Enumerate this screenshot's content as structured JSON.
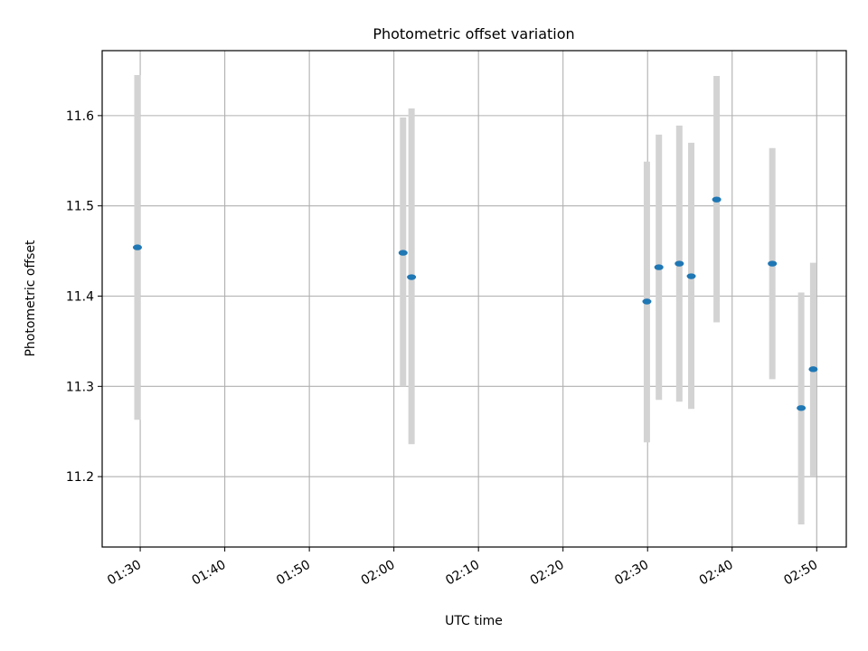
{
  "chart_data": {
    "type": "scatter",
    "title": "Photometric offset variation",
    "xlabel": "UTC time",
    "ylabel": "Photometric offset",
    "x_time_range": [
      "01:25:30",
      "02:53:30"
    ],
    "ylim": [
      11.122,
      11.672
    ],
    "grid": true,
    "x_ticks": [
      "01:30",
      "01:40",
      "01:50",
      "02:00",
      "02:10",
      "02:20",
      "02:30",
      "02:40",
      "02:50"
    ],
    "y_ticks": [
      11.2,
      11.3,
      11.4,
      11.5,
      11.6
    ],
    "y_tick_labels": [
      "11.2",
      "11.3",
      "11.4",
      "11.5",
      "11.6"
    ],
    "colors": {
      "point": "#1f77b4",
      "errorbar": "#d3d3d3",
      "grid": "#b0b0b0"
    },
    "points": [
      {
        "time": "01:29:40",
        "value": 11.454,
        "err_low": 11.263,
        "err_high": 11.645
      },
      {
        "time": "02:01:05",
        "value": 11.448,
        "err_low": 11.3,
        "err_high": 11.598
      },
      {
        "time": "02:02:05",
        "value": 11.421,
        "err_low": 11.236,
        "err_high": 11.608
      },
      {
        "time": "02:29:55",
        "value": 11.394,
        "err_low": 11.238,
        "err_high": 11.549
      },
      {
        "time": "02:31:20",
        "value": 11.432,
        "err_low": 11.285,
        "err_high": 11.579
      },
      {
        "time": "02:33:45",
        "value": 11.436,
        "err_low": 11.283,
        "err_high": 11.589
      },
      {
        "time": "02:35:10",
        "value": 11.422,
        "err_low": 11.275,
        "err_high": 11.57
      },
      {
        "time": "02:38:10",
        "value": 11.507,
        "err_low": 11.371,
        "err_high": 11.644
      },
      {
        "time": "02:44:45",
        "value": 11.436,
        "err_low": 11.308,
        "err_high": 11.564
      },
      {
        "time": "02:48:10",
        "value": 11.276,
        "err_low": 11.147,
        "err_high": 11.404
      },
      {
        "time": "02:49:35",
        "value": 11.319,
        "err_low": 11.2,
        "err_high": 11.437
      }
    ]
  }
}
